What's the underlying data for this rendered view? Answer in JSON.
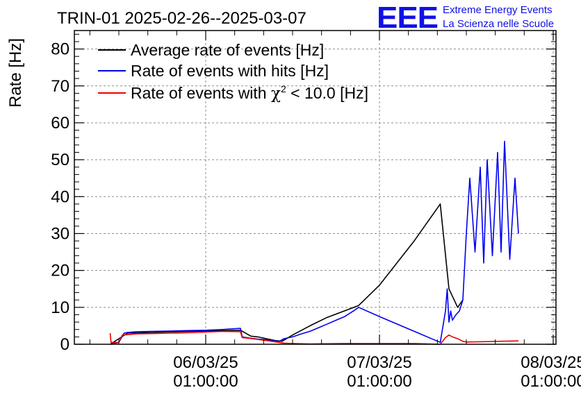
{
  "chart_data": {
    "type": "line",
    "title": "TRIN-01 2025-02-26--2025-03-07",
    "ylabel": "Rate [Hz]",
    "xlabel": "",
    "ylim": [
      0,
      85
    ],
    "xlim": [
      -0.75,
      2.02
    ],
    "yticks": [
      0,
      10,
      20,
      30,
      40,
      50,
      60,
      70,
      80
    ],
    "x_unit": "days after 06/03/25 01:00:00",
    "xticks": [
      {
        "x": 0,
        "line1": "06/03/25",
        "line2": "01:00:00"
      },
      {
        "x": 1,
        "line1": "07/03/25",
        "line2": "01:00:00"
      },
      {
        "x": 2,
        "line1": "08/03/25",
        "line2": "01:00:00"
      }
    ],
    "grid": true,
    "legend_position": "top-left",
    "series": [
      {
        "name": "Average rate of events [Hz]",
        "color": "#000000",
        "x": [
          -0.55,
          -0.45,
          -0.25,
          0.0,
          0.2,
          0.26,
          0.3,
          0.4,
          0.44,
          0.5,
          0.6,
          0.7,
          0.88,
          1.0,
          1.2,
          1.35,
          1.4,
          1.45,
          1.48
        ],
        "y": [
          0.0,
          3.0,
          3.3,
          3.6,
          3.8,
          2.2,
          2.0,
          1.0,
          0.8,
          2.5,
          5.0,
          7.3,
          10.5,
          16.0,
          28.0,
          38.0,
          15.0,
          10.0,
          12.0
        ]
      },
      {
        "name": "Rate of events with hits [Hz]",
        "color": "#0000ee",
        "x": [
          -0.55,
          -0.5,
          -0.47,
          -0.45,
          -0.4,
          -0.3,
          -0.2,
          -0.1,
          0.0,
          0.1,
          0.2,
          0.21,
          0.25,
          0.3,
          0.35,
          0.42,
          0.45,
          0.5,
          0.55,
          0.6,
          0.65,
          0.7,
          0.75,
          0.8,
          0.85,
          0.88,
          1.0,
          1.2,
          1.35,
          1.38,
          1.39,
          1.4,
          1.41,
          1.42,
          1.44,
          1.46,
          1.48,
          1.5,
          1.52,
          1.55,
          1.58,
          1.6,
          1.62,
          1.65,
          1.68,
          1.7,
          1.72,
          1.75,
          1.78,
          1.8
        ],
        "y": [
          0.0,
          0.5,
          3.0,
          3.2,
          3.4,
          3.5,
          3.6,
          3.7,
          3.8,
          4.0,
          4.3,
          2.0,
          1.7,
          1.4,
          1.2,
          0.7,
          1.5,
          2.0,
          2.8,
          3.5,
          4.5,
          5.5,
          6.5,
          7.5,
          9.0,
          10.0,
          7.5,
          3.5,
          0.5,
          9.0,
          15.0,
          6.0,
          9.0,
          6.5,
          8.0,
          9.0,
          12.0,
          30.0,
          45.0,
          25.0,
          48.0,
          22.0,
          50.0,
          24.0,
          52.0,
          25.0,
          55.0,
          23.0,
          45.0,
          30.0
        ]
      },
      {
        "name": "Rate of events with χ² < 10.0 [Hz]",
        "legend_main": "Rate of events with ",
        "legend_chi": "χ",
        "legend_sup": "2",
        "legend_rest": " < 10.0 [Hz]",
        "color": "#ee0000",
        "x": [
          -0.55,
          -0.545,
          -0.5,
          -0.48,
          -0.45,
          -0.4,
          -0.3,
          -0.2,
          -0.1,
          0.0,
          0.1,
          0.2,
          0.21,
          0.25,
          0.3,
          0.35,
          0.42,
          0.45,
          0.5,
          0.6,
          0.8,
          1.0,
          1.2,
          1.35,
          1.38,
          1.4,
          1.42,
          1.45,
          1.48,
          1.5,
          1.6,
          1.7,
          1.8
        ],
        "y": [
          3.0,
          0.5,
          0.5,
          2.5,
          2.6,
          2.8,
          2.9,
          3.0,
          3.1,
          3.3,
          3.5,
          3.4,
          1.8,
          1.6,
          1.3,
          1.0,
          0.5,
          0.3,
          0.2,
          0.1,
          0.2,
          0.2,
          0.2,
          0.0,
          1.8,
          2.5,
          2.0,
          1.5,
          0.8,
          0.6,
          0.7,
          0.8,
          0.9
        ]
      }
    ]
  },
  "branding": {
    "logo_text": "EEE",
    "line1": "Extreme Energy Events",
    "line2": "La Scienza nelle Scuole"
  }
}
